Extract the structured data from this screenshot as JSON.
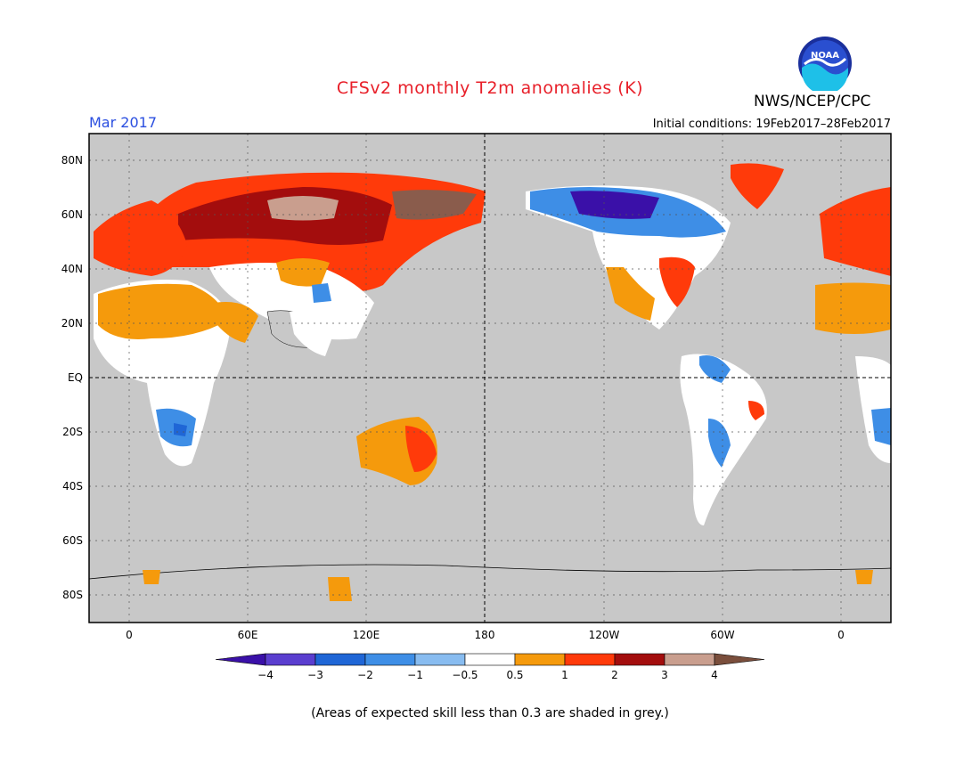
{
  "header": {
    "title": "CFSv2 monthly T2m anomalies (K)",
    "org": "NWS/NCEP/CPC",
    "period": "Mar 2017",
    "initial_conditions": "Initial conditions: 19Feb2017–28Feb2017",
    "logo_text": "NOAA"
  },
  "map": {
    "lat_labels": [
      "80N",
      "60N",
      "40N",
      "20N",
      "EQ",
      "20S",
      "40S",
      "60S",
      "80S"
    ],
    "lon_labels": [
      "0",
      "60E",
      "120E",
      "180",
      "120W",
      "60W",
      "0"
    ],
    "background_color": "#c8c8c8"
  },
  "colorbar": {
    "tick_labels": [
      "−4",
      "−3",
      "−2",
      "−1",
      "−0.5",
      "0.5",
      "1",
      "2",
      "3",
      "4"
    ],
    "colors": [
      "#3a10a8",
      "#5a3ecf",
      "#1f66d6",
      "#3e8ee6",
      "#88bcf0",
      "#ffffff",
      "#f59a0c",
      "#ff3a0a",
      "#a30d0d",
      "#c99e8e",
      "#7a4e3c"
    ]
  },
  "footer": {
    "note": "(Areas of expected skill less than 0.3 are shaded in grey.)"
  }
}
